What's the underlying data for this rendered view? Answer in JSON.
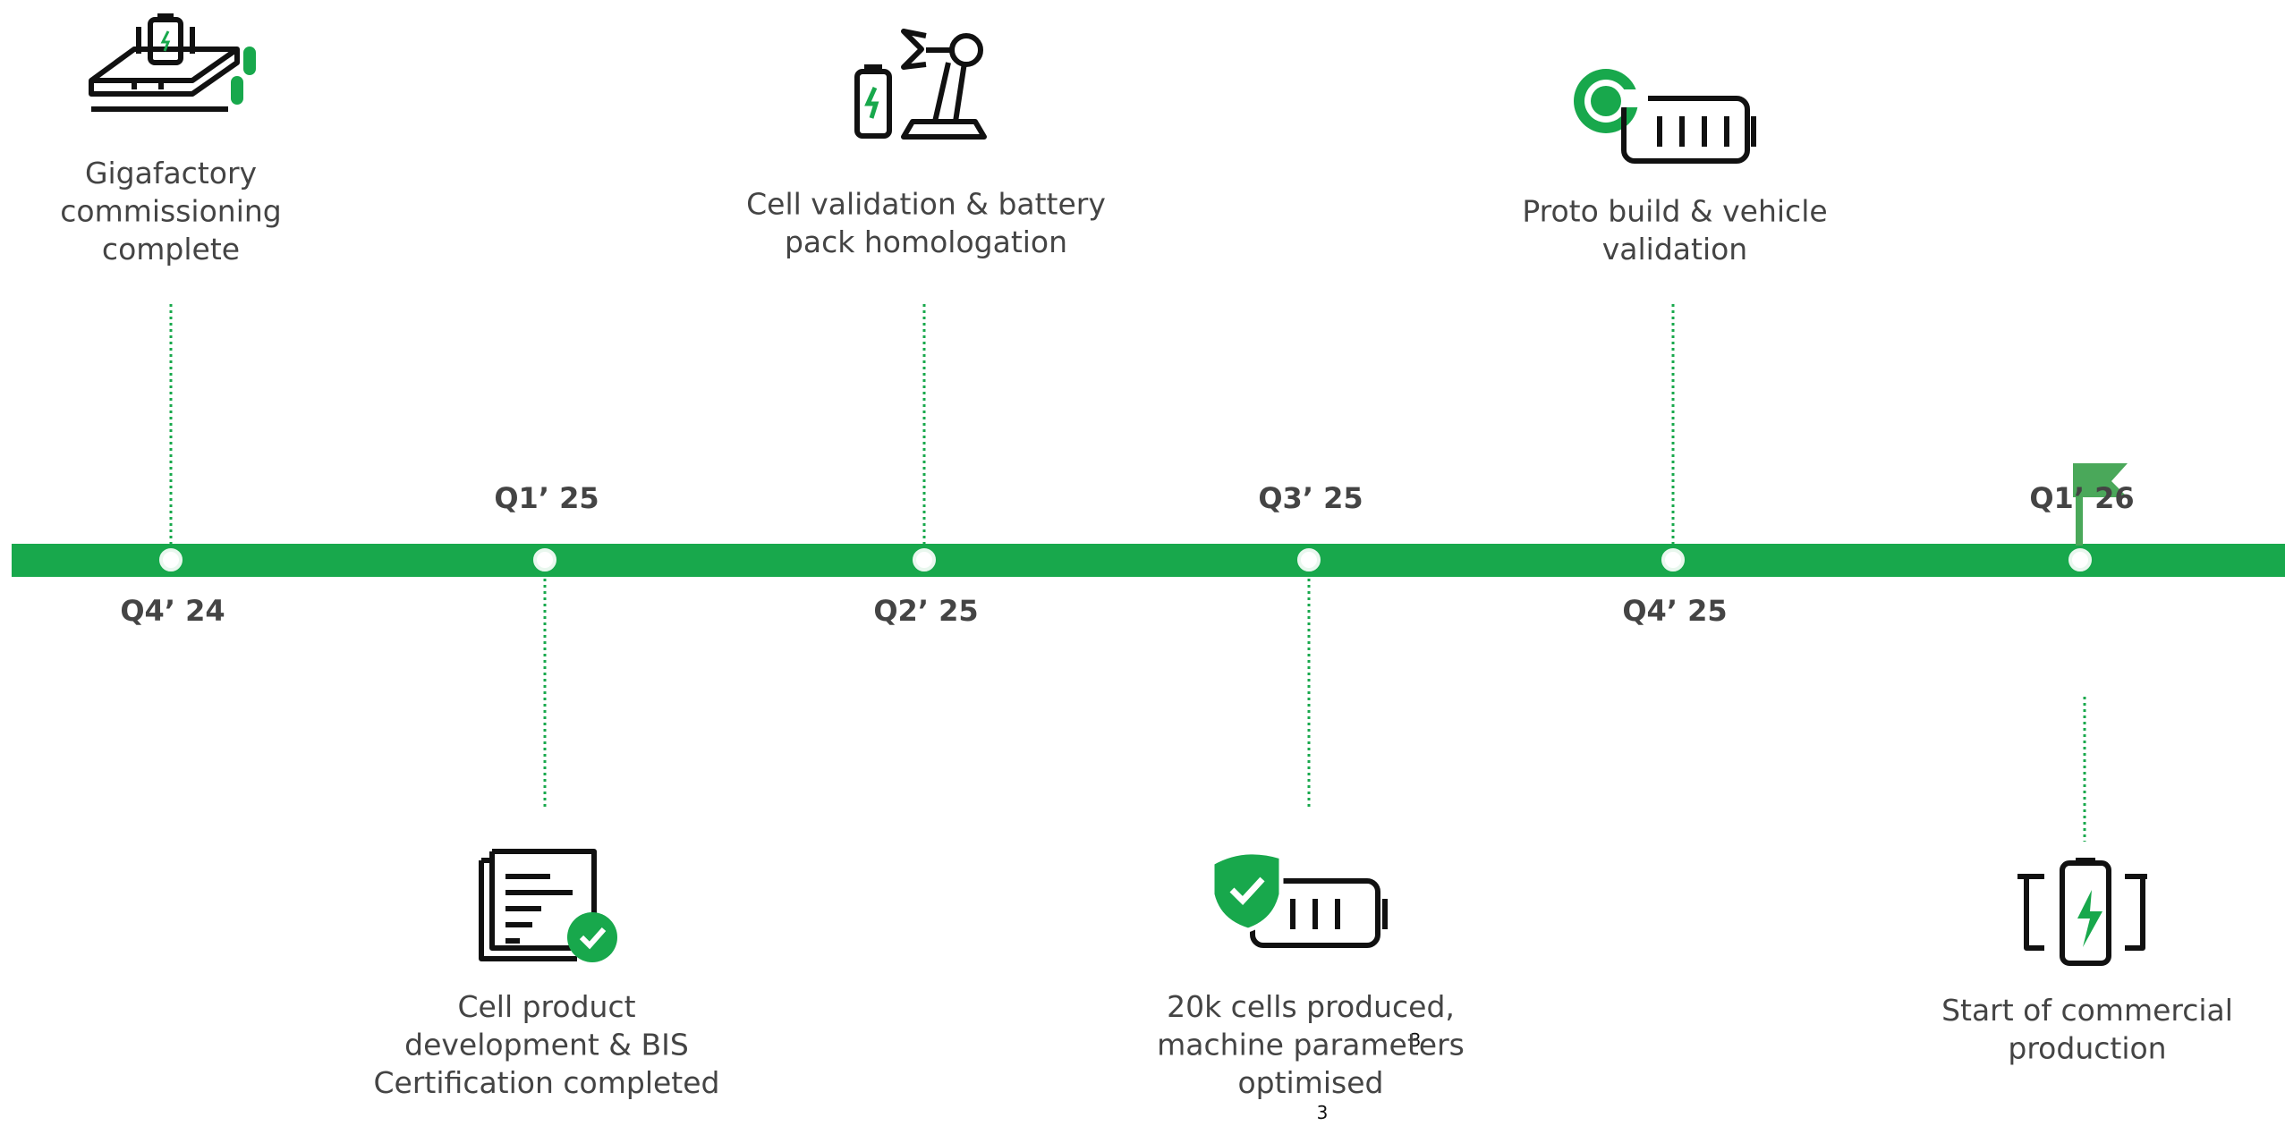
{
  "timeline": {
    "milestones": [
      {
        "quarter": "Q4’ 24",
        "label": [
          "Gigafactory",
          "commissioning",
          "complete"
        ],
        "side": "top"
      },
      {
        "quarter": "Q1’ 25",
        "label": [
          "Cell product",
          "development & BIS",
          "Certification completed"
        ],
        "side": "bottom"
      },
      {
        "quarter": "Q2’ 25",
        "label": [
          "Cell validation & battery",
          "pack homologation"
        ],
        "side": "top"
      },
      {
        "quarter": "Q3’ 25",
        "label": [
          "20k cells produced,",
          "machine parameters",
          "optimised"
        ],
        "side": "bottom"
      },
      {
        "quarter": "Q4’ 25",
        "label": [
          "Proto build & vehicle",
          "validation"
        ],
        "side": "top"
      },
      {
        "quarter": "Q1’ 26",
        "label": [
          "Start of commercial",
          "production"
        ],
        "side": "bottom"
      }
    ],
    "color": "#18a84c"
  },
  "overlay_text": "3",
  "page_number": "3"
}
